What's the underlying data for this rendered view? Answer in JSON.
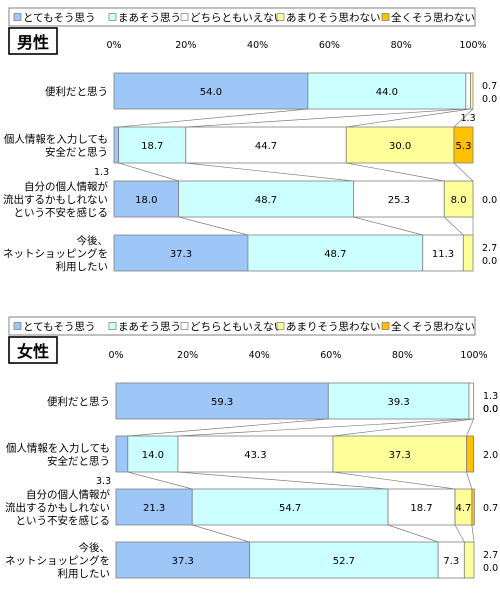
{
  "colors": {
    "s1": "#9ec6f6",
    "s2": "#ccffff",
    "s3": "#ffffff",
    "s4": "#ffff99",
    "s5": "#ffc000",
    "border": "#808080",
    "connector": "#808080"
  },
  "chart_data": [
    {
      "type": "bar",
      "orientation": "horizontal",
      "stacked": true,
      "title": "男性",
      "xlim": [
        0,
        100
      ],
      "x_ticks": [
        "0%",
        "20%",
        "40%",
        "60%",
        "80%",
        "100%"
      ],
      "legend": [
        "とてもそう思う",
        "まあそう思う",
        "どちらともいえない",
        "あまりそう思わない",
        "全くそう思わない"
      ],
      "legend_position": "top",
      "categories": [
        [
          "便利だと思う"
        ],
        [
          "個人情報を入力しても",
          "安全だと思う"
        ],
        [
          "自分の個人情報が",
          "流出するかもしれない",
          "という不安を感じる"
        ],
        [
          "今後、",
          "ネットショッピングを",
          "利用したい"
        ]
      ],
      "series": [
        {
          "name": "とてもそう思う",
          "values": [
            54.0,
            1.3,
            18.0,
            37.3
          ]
        },
        {
          "name": "まあそう思う",
          "values": [
            44.0,
            18.7,
            48.7,
            48.7
          ]
        },
        {
          "name": "どちらともいえない",
          "values": [
            1.3,
            44.7,
            25.3,
            11.3
          ]
        },
        {
          "name": "あまりそう思わない",
          "values": [
            0.7,
            30.0,
            8.0,
            2.7
          ]
        },
        {
          "name": "全くそう思わない",
          "values": [
            0.0,
            5.3,
            0.0,
            0.0
          ]
        }
      ]
    },
    {
      "type": "bar",
      "orientation": "horizontal",
      "stacked": true,
      "title": "女性",
      "xlim": [
        0,
        100
      ],
      "x_ticks": [
        "0%",
        "20%",
        "40%",
        "60%",
        "80%",
        "100%"
      ],
      "legend": [
        "とてもそう思う",
        "まあそう思う",
        "どちらともいえない",
        "あまりそう思わない",
        "全くそう思わない"
      ],
      "legend_position": "top",
      "categories": [
        [
          "便利だと思う"
        ],
        [
          "個人情報を入力しても",
          "安全だと思う"
        ],
        [
          "自分の個人情報が",
          "流出するかもしれない",
          "という不安を感じる"
        ],
        [
          "今後、",
          "ネットショッピングを",
          "利用したい"
        ]
      ],
      "series": [
        {
          "name": "とてもそう思う",
          "values": [
            59.3,
            3.3,
            21.3,
            37.3
          ]
        },
        {
          "name": "まあそう思う",
          "values": [
            39.3,
            14.0,
            54.7,
            52.7
          ]
        },
        {
          "name": "どちらともいえない",
          "values": [
            1.3,
            43.3,
            18.7,
            7.3
          ]
        },
        {
          "name": "あまりそう思わない",
          "values": [
            0.0,
            37.3,
            4.7,
            2.7
          ]
        },
        {
          "name": "全くそう思わない",
          "values": [
            0.0,
            2.0,
            0.7,
            0.0
          ]
        }
      ]
    }
  ]
}
